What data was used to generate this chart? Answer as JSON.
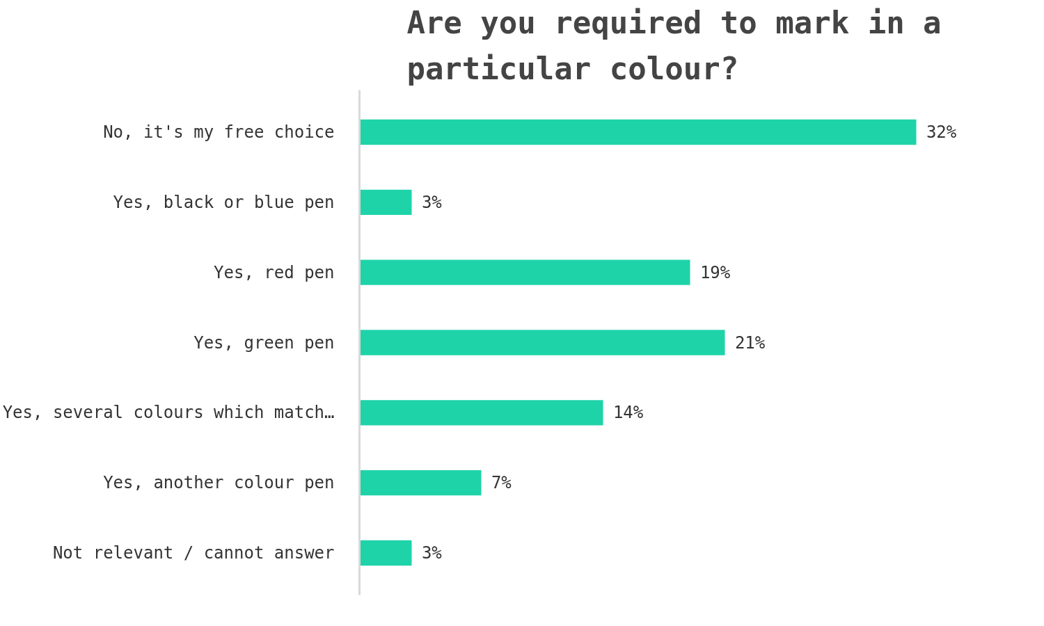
{
  "chart_data": {
    "type": "bar",
    "orientation": "horizontal",
    "title": "Are you required to mark in a particular colour?",
    "categories": [
      "No, it's my free choice",
      "Yes, black or blue pen",
      "Yes, red pen",
      "Yes, green pen",
      "Yes, several colours which match…",
      "Yes, another colour pen",
      "Not relevant / cannot answer"
    ],
    "values": [
      32,
      3,
      19,
      21,
      14,
      7,
      3
    ],
    "value_labels": [
      "32%",
      "3%",
      "19%",
      "21%",
      "14%",
      "7%",
      "3%"
    ],
    "color": "#1fd3a9",
    "grid": false
  }
}
